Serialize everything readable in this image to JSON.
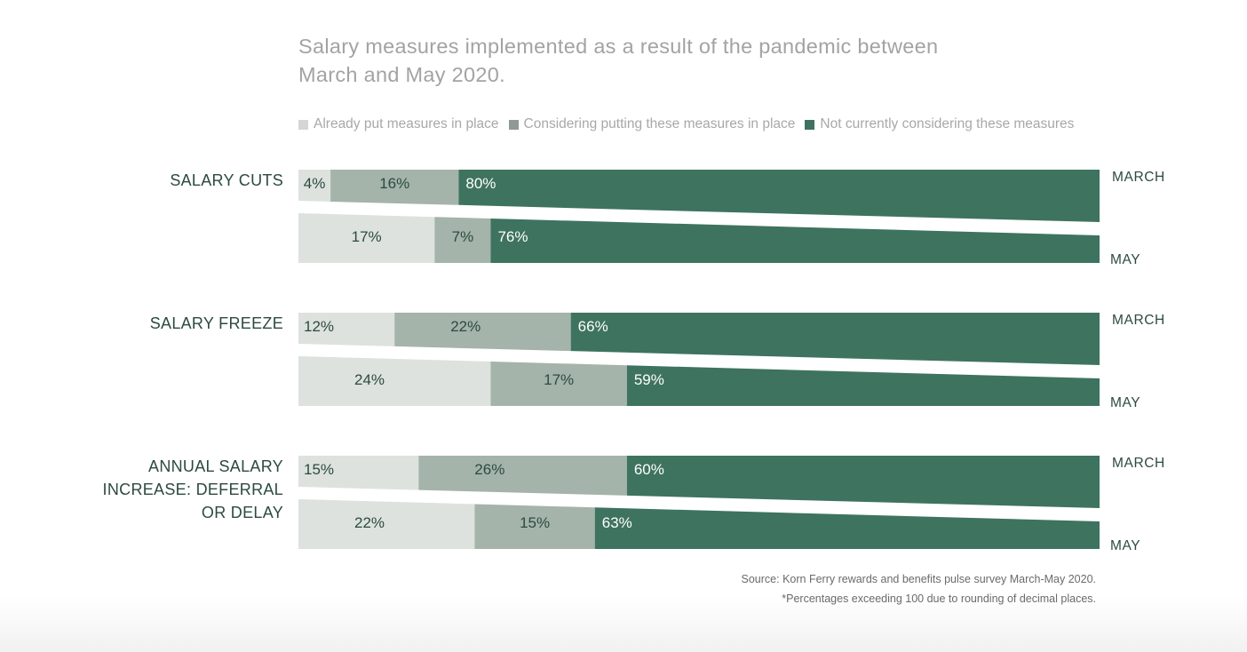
{
  "chart_data": {
    "type": "bar",
    "orientation": "horizontal",
    "stacked": true,
    "title": "Salary measures implemented as a result of the pandemic between March and May 2020.",
    "title_lines": [
      "Salary measures implemented as a result of the pandemic between",
      "March and May 2020."
    ],
    "legend_position": "top",
    "series": [
      {
        "name": "Already put measures in place",
        "color": "#dde2de",
        "label_color": "#2c4a3f"
      },
      {
        "name": "Considering putting these measures in place",
        "color": "#a4b4aa",
        "label_color": "#2c4a3f"
      },
      {
        "name": "Not currently considering these measures",
        "color": "#3e7360",
        "label_color": "#ffffff"
      }
    ],
    "categories": [
      {
        "label_lines": [
          "SALARY CUTS"
        ],
        "periods": [
          {
            "name": "MARCH",
            "values": [
              4,
              16,
              80
            ],
            "labels": [
              "4%",
              "16%",
              "80%"
            ]
          },
          {
            "name": "MAY",
            "values": [
              17,
              7,
              76
            ],
            "labels": [
              "17%",
              "7%",
              "76%"
            ]
          }
        ]
      },
      {
        "label_lines": [
          "SALARY FREEZE"
        ],
        "periods": [
          {
            "name": "MARCH",
            "values": [
              12,
              22,
              66
            ],
            "labels": [
              "12%",
              "22%",
              "66%"
            ]
          },
          {
            "name": "MAY",
            "values": [
              24,
              17,
              59
            ],
            "labels": [
              "24%",
              "17%",
              "59%"
            ]
          }
        ]
      },
      {
        "label_lines": [
          "ANNUAL SALARY",
          "INCREASE: DEFERRAL",
          "OR DELAY"
        ],
        "periods": [
          {
            "name": "MARCH",
            "values": [
              15,
              26,
              60
            ],
            "labels": [
              "15%",
              "26%",
              "60%"
            ]
          },
          {
            "name": "MAY",
            "values": [
              22,
              15,
              63
            ],
            "labels": [
              "22%",
              "15%",
              "63%"
            ]
          }
        ]
      }
    ],
    "xlim": [
      0,
      100
    ],
    "xlabel": "",
    "ylabel": "",
    "grid": false
  },
  "footnotes": {
    "source": "Source: Korn Ferry rewards and benefits pulse survey March-May 2020.",
    "note": "*Percentages exceeding 100 due to rounding of decimal places."
  }
}
